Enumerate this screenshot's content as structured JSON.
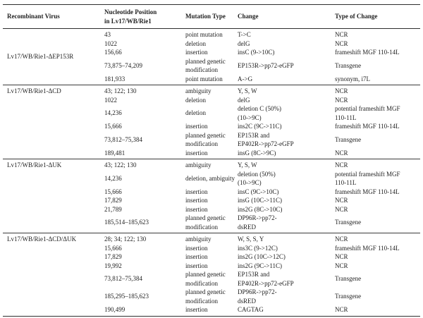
{
  "table": {
    "columns": [
      "Recombinant Virus",
      "Nucleotide Position\nin Lv17/WB/Rie1",
      "Mutation Type",
      "Change",
      "Type of Change"
    ],
    "groups": [
      {
        "virus": "Lv17/WB/Rie1-ΔEP153R",
        "label_align": "center",
        "rows": [
          {
            "position": "43",
            "mutation_type": "point mutation",
            "change": "T->C",
            "change_type": "NCR"
          },
          {
            "position": "1022",
            "mutation_type": "deletion",
            "change": "delG",
            "change_type": "NCR"
          },
          {
            "position": "156,66",
            "mutation_type": "insertion",
            "change": "insC (9->10C)",
            "change_type": "frameshift MGF 110-14L"
          },
          {
            "position": "73,875–74,209",
            "mutation_type": "planned genetic\nmodification",
            "change": "EP153R->pp72-eGFP",
            "change_type": "Transgene"
          },
          {
            "position": "181,933",
            "mutation_type": "point mutation",
            "change": "A->G",
            "change_type": "synonym, i7L"
          }
        ]
      },
      {
        "virus": "Lv17/WB/Rie1-ΔCD",
        "label_align": "top",
        "rows": [
          {
            "position": "43; 122; 130",
            "mutation_type": "ambiguity",
            "change": "Y, S, W",
            "change_type": "NCR"
          },
          {
            "position": "1022",
            "mutation_type": "deletion",
            "change": "delG",
            "change_type": "NCR"
          },
          {
            "position": "14,236",
            "mutation_type": "deletion",
            "change": "deletion C (50%)\n(10->9C)",
            "change_type": "potential frameshift MGF\n110-11L"
          },
          {
            "position": "15,666",
            "mutation_type": "insertion",
            "change": "ins2C (9C->11C)",
            "change_type": "frameshift MGF 110-14L"
          },
          {
            "position": "73,812–75,384",
            "mutation_type": "planned genetic\nmodification",
            "change": "EP153R and\nEP402R->pp72-eGFP",
            "change_type": "Transgene"
          },
          {
            "position": "189,481",
            "mutation_type": "insertion",
            "change": "insG (8C->9C)",
            "change_type": "NCR"
          }
        ]
      },
      {
        "virus": "Lv17/WB/Rie1-ΔUK",
        "label_align": "top",
        "rows": [
          {
            "position": "43; 122; 130",
            "mutation_type": "ambiguity",
            "change": "Y, S, W",
            "change_type": "NCR"
          },
          {
            "position": "14,236",
            "mutation_type": "deletion, ambiguity",
            "change": "deletion (50%)\n(10->9C)",
            "change_type": "potential frameshift MGF\n110-11L"
          },
          {
            "position": "15,666",
            "mutation_type": "insertion",
            "change": "insC (9C->10C)",
            "change_type": "frameshift MGF 110-14L"
          },
          {
            "position": "17,829",
            "mutation_type": "insertion",
            "change": "insG (10C->11C)",
            "change_type": "NCR"
          },
          {
            "position": "21,789",
            "mutation_type": "insertion",
            "change": "ins2G (8C->10C)",
            "change_type": "NCR"
          },
          {
            "position": "185,514–185,623",
            "mutation_type": "planned genetic\nmodification",
            "change": "DP96R->pp72-\ndsRED",
            "change_type": "Transgene"
          }
        ]
      },
      {
        "virus": "Lv17/WB/Rie1-ΔCD/ΔUK",
        "label_align": "top",
        "rows": [
          {
            "position": "28; 34; 122; 130",
            "mutation_type": "ambiguity",
            "change": "W, S, S, Y",
            "change_type": "NCR"
          },
          {
            "position": "15,666",
            "mutation_type": "insertion",
            "change": "ins3C (9->12C)",
            "change_type": "frameshift MGF 110-14L"
          },
          {
            "position": "17,829",
            "mutation_type": "insertion",
            "change": "ins2G (10C->12C)",
            "change_type": "NCR"
          },
          {
            "position": "19,992",
            "mutation_type": "insertion",
            "change": "ins2G (9C->11C)",
            "change_type": "NCR"
          },
          {
            "position": "73,812–75,384",
            "mutation_type": "planned genetic\nmodification",
            "change": "EP153R and\nEP402R->pp72-eGFP",
            "change_type": "Transgene"
          },
          {
            "position": "185,295–185,623",
            "mutation_type": "planned genetic\nmodification",
            "change": "DP96R->pp72-\ndsRED",
            "change_type": "Transgene"
          },
          {
            "position": "190,499",
            "mutation_type": "insertion",
            "change": "CAGTAG",
            "change_type": "NCR"
          }
        ]
      }
    ]
  },
  "colors": {
    "background": "#ffffff",
    "text": "#222222",
    "rule": "#2e2e2e"
  }
}
